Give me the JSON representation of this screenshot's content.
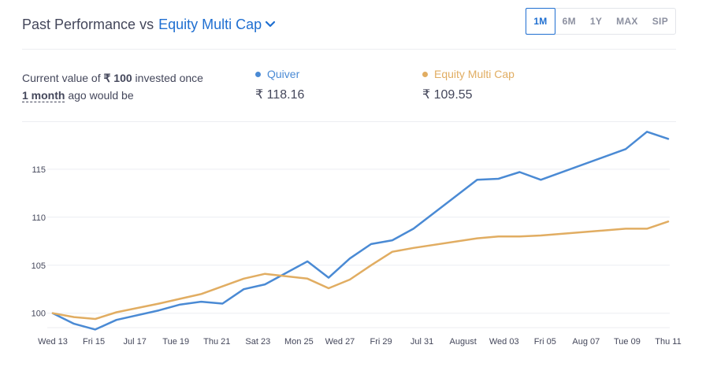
{
  "header": {
    "title_prefix": "Past Performance vs",
    "category": "Equity Multi Cap"
  },
  "range_tabs": [
    {
      "label": "1M",
      "active": true
    },
    {
      "label": "6M",
      "active": false
    },
    {
      "label": "1Y",
      "active": false
    },
    {
      "label": "MAX",
      "active": false
    },
    {
      "label": "SIP",
      "active": false
    }
  ],
  "summary": {
    "line1_pre": "Current value of",
    "amount": "₹ 100",
    "line1_post": "invested once",
    "period": "1 month",
    "line2_post": "ago would be"
  },
  "funds": [
    {
      "name": "Quiver",
      "value": "₹ 118.16",
      "color": "#4a8ad4"
    },
    {
      "name": "Equity Multi Cap",
      "value": "₹ 109.55",
      "color": "#e1ad62"
    }
  ],
  "chart_data": {
    "type": "line",
    "yticks": [
      100,
      105,
      110,
      115
    ],
    "ylim": [
      98.5,
      119.5
    ],
    "xticks": [
      "Wed 13",
      "Fri 15",
      "Jul 17",
      "Tue 19",
      "Thu 21",
      "Sat 23",
      "Mon 25",
      "Wed 27",
      "Fri 29",
      "Jul 31",
      "August",
      "Wed 03",
      "Fri 05",
      "Aug 07",
      "Tue 09",
      "Thu 11"
    ],
    "x": [
      "Jul 13",
      "Jul 14",
      "Jul 15",
      "Jul 16",
      "Jul 18",
      "Jul 19",
      "Jul 20",
      "Jul 21",
      "Jul 22",
      "Jul 23",
      "Jul 25",
      "Jul 26",
      "Jul 27",
      "Jul 28",
      "Jul 29",
      "Jul 30",
      "Aug 02",
      "Aug 03",
      "Aug 04",
      "Aug 05",
      "Aug 09",
      "Aug 10",
      "Aug 11"
    ],
    "series": [
      {
        "name": "Quiver",
        "color": "#4a8ad4",
        "values": [
          100.0,
          98.9,
          98.3,
          99.3,
          100.3,
          100.9,
          101.2,
          101.0,
          102.5,
          103.0,
          105.4,
          103.7,
          105.7,
          107.2,
          107.6,
          108.8,
          113.9,
          114.0,
          114.7,
          113.9,
          117.1,
          118.9,
          118.16
        ]
      },
      {
        "name": "Equity Multi Cap",
        "color": "#e1ad62",
        "values": [
          100.0,
          99.6,
          99.4,
          100.1,
          101.0,
          101.5,
          102.0,
          102.8,
          103.6,
          104.1,
          103.6,
          102.6,
          103.5,
          105.0,
          106.4,
          106.8,
          107.8,
          108.0,
          108.0,
          108.1,
          108.8,
          108.8,
          109.55
        ]
      }
    ],
    "grid": true
  }
}
